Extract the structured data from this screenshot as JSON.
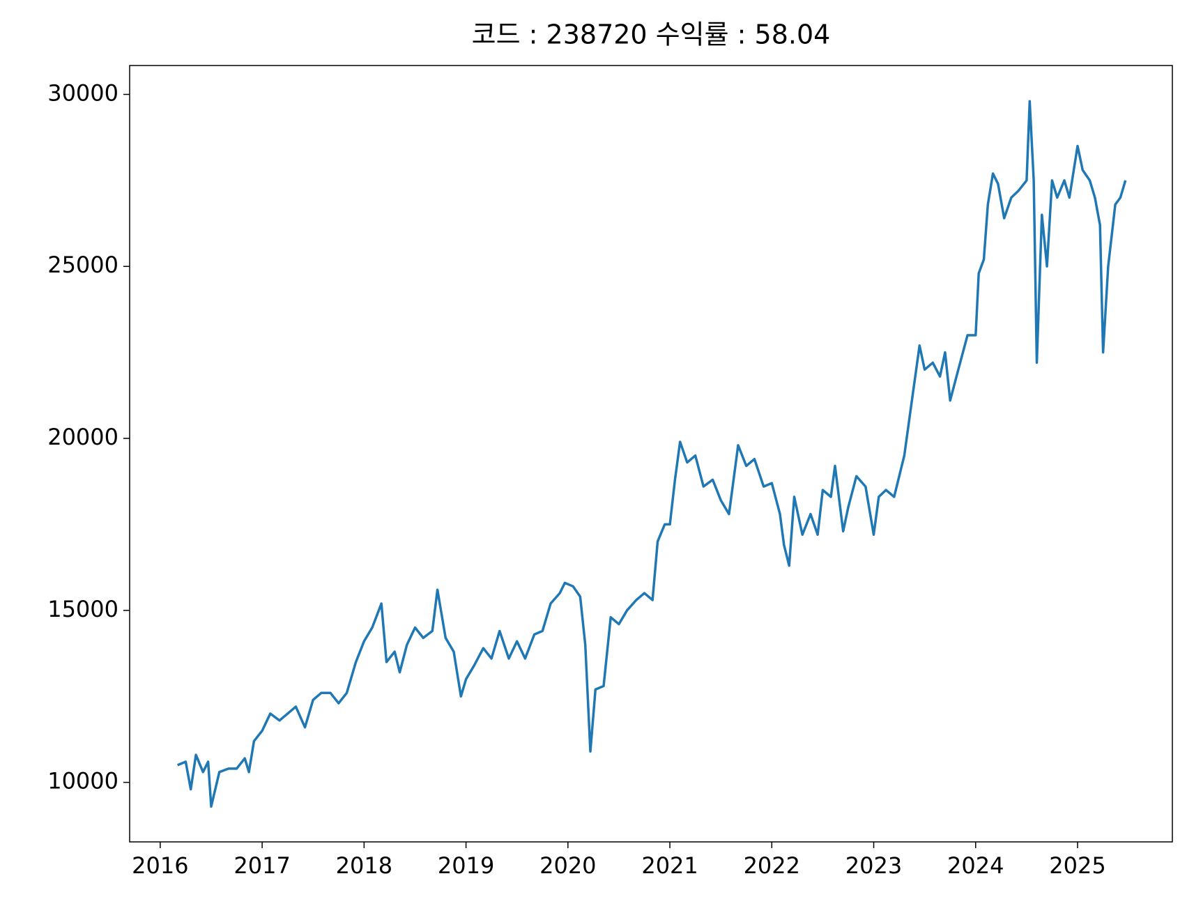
{
  "chart_data": {
    "type": "line",
    "title": "코드 : 238720 수익률 : 58.04",
    "xlim": [
      2015.7,
      2025.93
    ],
    "xticks": [
      2016,
      2017,
      2018,
      2019,
      2020,
      2021,
      2022,
      2023,
      2024,
      2025
    ],
    "ylim": [
      8270,
      30840
    ],
    "yticks": [
      10000,
      15000,
      20000,
      25000,
      30000
    ],
    "x": [
      2016.17,
      2016.25,
      2016.3,
      2016.35,
      2016.42,
      2016.47,
      2016.5,
      2016.58,
      2016.67,
      2016.75,
      2016.83,
      2016.87,
      2016.92,
      2017.0,
      2017.08,
      2017.17,
      2017.25,
      2017.33,
      2017.42,
      2017.5,
      2017.58,
      2017.67,
      2017.75,
      2017.83,
      2017.92,
      2018.0,
      2018.08,
      2018.17,
      2018.22,
      2018.3,
      2018.35,
      2018.42,
      2018.5,
      2018.58,
      2018.67,
      2018.72,
      2018.8,
      2018.88,
      2018.95,
      2019.0,
      2019.08,
      2019.17,
      2019.25,
      2019.33,
      2019.42,
      2019.5,
      2019.58,
      2019.67,
      2019.75,
      2019.83,
      2019.92,
      2019.97,
      2020.05,
      2020.12,
      2020.17,
      2020.22,
      2020.27,
      2020.35,
      2020.42,
      2020.5,
      2020.58,
      2020.67,
      2020.75,
      2020.83,
      2020.88,
      2020.95,
      2021.0,
      2021.05,
      2021.1,
      2021.17,
      2021.25,
      2021.33,
      2021.42,
      2021.5,
      2021.58,
      2021.67,
      2021.75,
      2021.83,
      2021.92,
      2022.0,
      2022.08,
      2022.12,
      2022.17,
      2022.22,
      2022.3,
      2022.38,
      2022.45,
      2022.5,
      2022.58,
      2022.62,
      2022.7,
      2022.75,
      2022.83,
      2022.92,
      2023.0,
      2023.05,
      2023.12,
      2023.2,
      2023.3,
      2023.37,
      2023.45,
      2023.5,
      2023.58,
      2023.65,
      2023.7,
      2023.75,
      2023.83,
      2023.92,
      2024.0,
      2024.03,
      2024.08,
      2024.12,
      2024.17,
      2024.22,
      2024.28,
      2024.35,
      2024.42,
      2024.5,
      2024.53,
      2024.57,
      2024.6,
      2024.65,
      2024.7,
      2024.75,
      2024.8,
      2024.87,
      2024.92,
      2025.0,
      2025.05,
      2025.12,
      2025.17,
      2025.22,
      2025.25,
      2025.3,
      2025.37,
      2025.42,
      2025.47
    ],
    "series": [
      {
        "name": "238720",
        "color": "#1f77b4",
        "values": [
          10500,
          10600,
          9800,
          10800,
          10300,
          10600,
          9300,
          10300,
          10400,
          10400,
          10700,
          10300,
          11200,
          11500,
          12000,
          11800,
          12000,
          12200,
          11600,
          12400,
          12600,
          12600,
          12300,
          12600,
          13500,
          14100,
          14500,
          15200,
          13500,
          13800,
          13200,
          14000,
          14500,
          14200,
          14400,
          15600,
          14200,
          13800,
          12500,
          13000,
          13400,
          13900,
          13600,
          14400,
          13600,
          14100,
          13600,
          14300,
          14400,
          15200,
          15500,
          15800,
          15700,
          15400,
          14000,
          10900,
          12700,
          12800,
          14800,
          14600,
          15000,
          15300,
          15500,
          15300,
          17000,
          17500,
          17500,
          18800,
          19900,
          19300,
          19500,
          18600,
          18800,
          18200,
          17800,
          19800,
          19200,
          19400,
          18600,
          18700,
          17800,
          16900,
          16300,
          18300,
          17200,
          17800,
          17200,
          18500,
          18300,
          19200,
          17300,
          18000,
          18900,
          18600,
          17200,
          18300,
          18500,
          18300,
          19500,
          21000,
          22700,
          22000,
          22200,
          21800,
          22500,
          21100,
          22000,
          23000,
          23000,
          24800,
          25200,
          26800,
          27700,
          27400,
          26400,
          27000,
          27200,
          27500,
          29800,
          27500,
          22200,
          26500,
          25000,
          27500,
          27000,
          27500,
          27000,
          28500,
          27800,
          27500,
          27000,
          26200,
          22500,
          25000,
          26800,
          27000,
          27500
        ]
      }
    ]
  }
}
